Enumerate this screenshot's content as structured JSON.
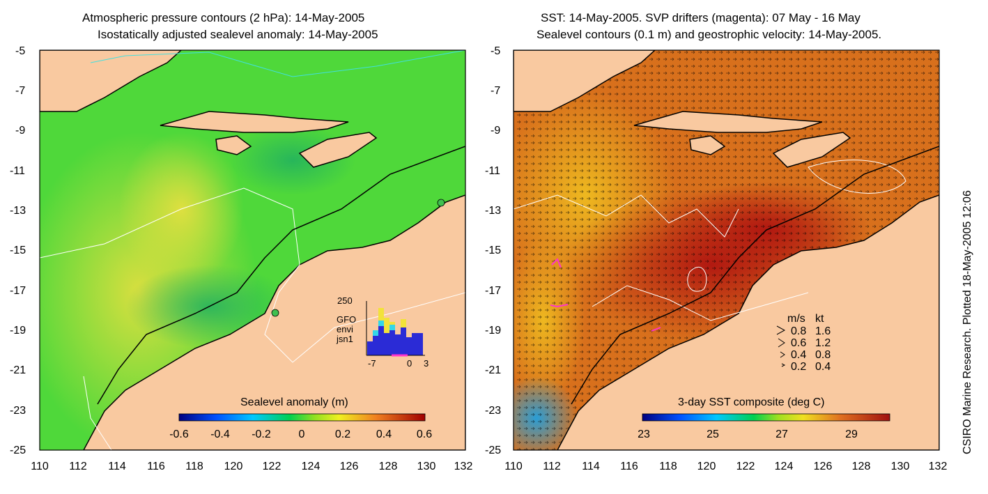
{
  "left_panel": {
    "title_line1": "Atmospheric pressure contours (2 hPa): 14-May-2005",
    "title_line2": "Isostatically adjusted sealevel anomaly: 14-May-2005",
    "colorbar_title": "Sealevel anomaly (m)",
    "colorbar_ticks": [
      "-0.6",
      "-0.4",
      "-0.2",
      "0",
      "0.2",
      "0.4",
      "0.6"
    ],
    "inset": {
      "y_top_label": "250",
      "x_labels": [
        "-7",
        "0",
        "3"
      ],
      "legend": [
        {
          "label": "GFO",
          "color": "#f2e23a"
        },
        {
          "label": "envi",
          "color": "#33d6e8"
        },
        {
          "label": "jsn1",
          "color": "#2b2bd6"
        }
      ]
    }
  },
  "right_panel": {
    "title_line1": "SST: 14-May-2005. SVP drifters (magenta): 07 May - 16 May",
    "title_line2": "Sealevel contours (0.1 m) and geostrophic velocity: 14-May-2005.",
    "colorbar_title": "3-day SST composite (deg C)",
    "colorbar_ticks": [
      "23",
      "25",
      "27",
      "29"
    ],
    "velocity_key": {
      "header_ms": "m/s",
      "header_kt": "kt",
      "rows": [
        {
          "ms": "0.8",
          "kt": "1.6"
        },
        {
          "ms": "0.6",
          "kt": "1.2"
        },
        {
          "ms": "0.4",
          "kt": "0.8"
        },
        {
          "ms": "0.2",
          "kt": "0.4"
        }
      ]
    }
  },
  "axes": {
    "y_ticks": [
      "-5",
      "-7",
      "-9",
      "-11",
      "-13",
      "-15",
      "-17",
      "-19",
      "-21",
      "-23",
      "-25"
    ],
    "x_ticks": [
      "110",
      "112",
      "114",
      "116",
      "118",
      "120",
      "122",
      "124",
      "126",
      "128",
      "130",
      "132"
    ]
  },
  "credit": "CSIRO Marine Research. Plotted 18-May-2005 12:06",
  "colors": {
    "land": "#f9c9a0",
    "contour_white": "#ffffff",
    "pressure_contour": "#40e0e0",
    "drifter": "#ff33cc"
  }
}
